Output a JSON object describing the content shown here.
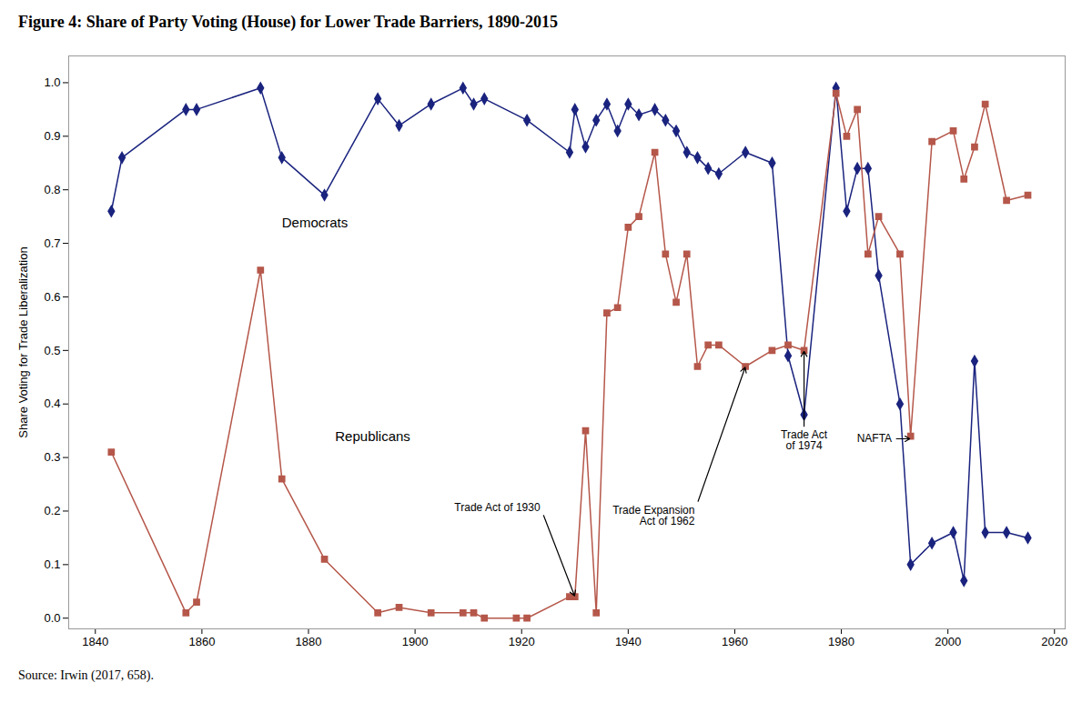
{
  "chart_data": {
    "type": "line",
    "title": "Figure 4: Share of Party Voting (House) for Lower Trade Barriers, 1890-2015",
    "ylabel": "Share Voting for Trade Liberalization",
    "source": "Source: Irwin (2017, 658).",
    "xlim": [
      1835,
      2022
    ],
    "ylim": [
      -0.02,
      1.05
    ],
    "xticks": [
      1840,
      1860,
      1880,
      1900,
      1920,
      1940,
      1960,
      1980,
      2000,
      2020
    ],
    "yticks": [
      {
        "value": 0,
        "label": "0.0"
      },
      0.1,
      0.2,
      0.3,
      0.4,
      0.5,
      0.6,
      0.7,
      0.8,
      0.9,
      {
        "value": 1,
        "label": "1.0"
      }
    ],
    "grid": false,
    "series": [
      {
        "name": "Democrats",
        "color": "#1a237e",
        "marker": "diamond",
        "line_style": "solid",
        "label_x": 1875,
        "label_y": 0.73,
        "x": [
          1843,
          1845,
          1857,
          1859,
          1871,
          1875,
          1883,
          1893,
          1897,
          1903,
          1909,
          1911,
          1913,
          1921,
          1929,
          1930,
          1932,
          1934,
          1936,
          1938,
          1940,
          1942,
          1945,
          1947,
          1949,
          1951,
          1953,
          1955,
          1957,
          1962,
          1967,
          1970,
          1973,
          1979,
          1981,
          1983,
          1985,
          1987,
          1991,
          1993,
          1997,
          2001,
          2003,
          2005,
          2007,
          2011,
          2015
        ],
        "values": [
          0.76,
          0.86,
          0.95,
          0.95,
          0.99,
          0.86,
          0.79,
          0.97,
          0.92,
          0.96,
          0.99,
          0.96,
          0.97,
          0.93,
          0.87,
          0.95,
          0.88,
          0.93,
          0.96,
          0.91,
          0.96,
          0.94,
          0.95,
          0.93,
          0.91,
          0.87,
          0.86,
          0.84,
          0.83,
          0.87,
          0.85,
          0.49,
          0.38,
          0.99,
          0.76,
          0.84,
          0.84,
          0.64,
          0.4,
          0.1,
          0.14,
          0.16,
          0.07,
          0.48,
          0.16,
          0.16,
          0.15
        ]
      },
      {
        "name": "Republicans",
        "color": "#b5574a",
        "marker": "square",
        "line_style": "solid",
        "label_x": 1885,
        "label_y": 0.33,
        "x": [
          1843,
          1857,
          1859,
          1871,
          1875,
          1883,
          1893,
          1897,
          1903,
          1909,
          1911,
          1913,
          1919,
          1921,
          1929,
          1930,
          1932,
          1934,
          1936,
          1938,
          1940,
          1942,
          1945,
          1947,
          1949,
          1951,
          1953,
          1955,
          1957,
          1962,
          1967,
          1970,
          1973,
          1979,
          1981,
          1983,
          1985,
          1987,
          1991,
          1993,
          1997,
          2001,
          2003,
          2005,
          2007,
          2011,
          2015
        ],
        "values": [
          0.31,
          0.01,
          0.03,
          0.65,
          0.26,
          0.11,
          0.01,
          0.02,
          0.01,
          0.01,
          0.01,
          0.0,
          0.0,
          0.0,
          0.04,
          0.04,
          0.35,
          0.01,
          0.57,
          0.58,
          0.73,
          0.75,
          0.87,
          0.68,
          0.59,
          0.68,
          0.47,
          0.51,
          0.51,
          0.47,
          0.5,
          0.51,
          0.5,
          0.98,
          0.9,
          0.95,
          0.68,
          0.75,
          0.68,
          0.34,
          0.89,
          0.91,
          0.82,
          0.88,
          0.96,
          0.78,
          0.79
        ]
      }
    ],
    "annotations": [
      {
        "text": "Trade Act of 1930",
        "x": 1930,
        "y": 0.04,
        "text_x": 1924,
        "text_y": 0.195
      },
      {
        "text": "Trade Expansion\nAct of 1962",
        "x": 1962,
        "y": 0.47,
        "text_x": 1953,
        "text_y": 0.215
      },
      {
        "text": "Trade Act\nof 1974",
        "x": 1973,
        "y": 0.5,
        "text_x": 1973,
        "text_y": 0.355
      },
      {
        "text": "NAFTA",
        "x": 1993,
        "y": 0.335,
        "text_x": 1990,
        "text_y": 0.335
      }
    ]
  }
}
